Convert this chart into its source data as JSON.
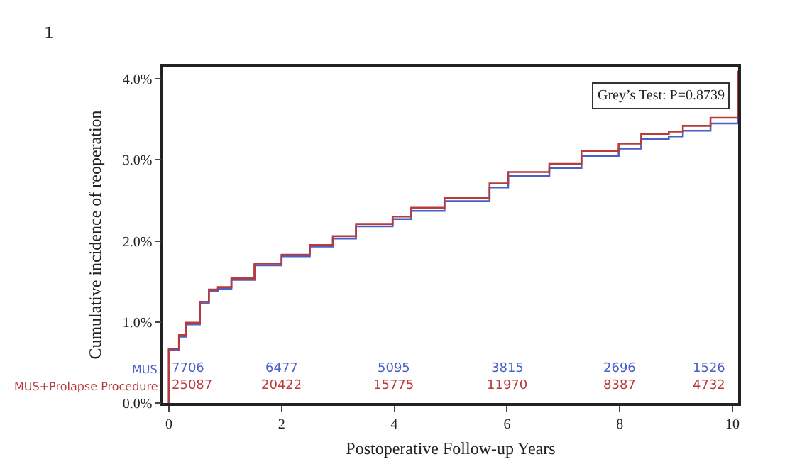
{
  "chart_data": {
    "type": "step",
    "xlabel": "Postoperative Follow-up Years",
    "ylabel": "Cumulative incidence of reoperation",
    "xlim": [
      -0.1,
      10.1
    ],
    "xticks": [
      0,
      2,
      4,
      6,
      8,
      10
    ],
    "ylim": [
      0,
      4.15
    ],
    "yticks": [
      {
        "value": 0,
        "label": "0.0%"
      },
      {
        "value": 1,
        "label": "1.0%"
      },
      {
        "value": 2,
        "label": "2.0%"
      },
      {
        "value": 3,
        "label": "3.0%"
      },
      {
        "value": 4,
        "label": "4.0%"
      }
    ],
    "legend": false,
    "marker": "none",
    "line_style": "solid",
    "series": [
      {
        "name": "MUS",
        "color": "#4a5fc8",
        "x": [
          0,
          0,
          0.18,
          0.3,
          0.55,
          0.71,
          0.87,
          1.11,
          1.52,
          2.0,
          2.5,
          2.91,
          3.32,
          3.97,
          4.3,
          4.89,
          5.69,
          6.02,
          6.75,
          7.32,
          7.98,
          8.38,
          8.87,
          9.12,
          9.61,
          10.1
        ],
        "values": [
          0,
          0.66,
          0.82,
          0.97,
          1.23,
          1.38,
          1.41,
          1.52,
          1.7,
          1.81,
          1.93,
          2.03,
          2.18,
          2.27,
          2.37,
          2.49,
          2.66,
          2.8,
          2.9,
          3.05,
          3.14,
          3.26,
          3.29,
          3.36,
          3.45,
          3.54
        ]
      },
      {
        "name": "MUS+Prolapse Procedure",
        "color": "#b83a3a",
        "x": [
          0,
          0,
          0.18,
          0.3,
          0.55,
          0.71,
          0.87,
          1.11,
          1.52,
          2.0,
          2.5,
          2.91,
          3.32,
          3.97,
          4.3,
          4.89,
          5.69,
          6.02,
          6.75,
          7.32,
          7.98,
          8.38,
          8.87,
          9.12,
          9.61,
          10.1,
          10.1
        ],
        "values": [
          0,
          0.67,
          0.84,
          0.99,
          1.25,
          1.4,
          1.43,
          1.54,
          1.72,
          1.83,
          1.95,
          2.06,
          2.21,
          2.3,
          2.41,
          2.53,
          2.71,
          2.85,
          2.95,
          3.11,
          3.2,
          3.32,
          3.35,
          3.42,
          3.52,
          3.62,
          4.1
        ]
      }
    ],
    "annotations": [
      "1",
      "Grey’s Test: P=0.8739",
      "7706",
      "6477",
      "5095",
      "3815",
      "2696",
      "1526",
      "25087",
      "20422",
      "15775",
      "11970",
      "8387",
      "4732"
    ]
  }
}
